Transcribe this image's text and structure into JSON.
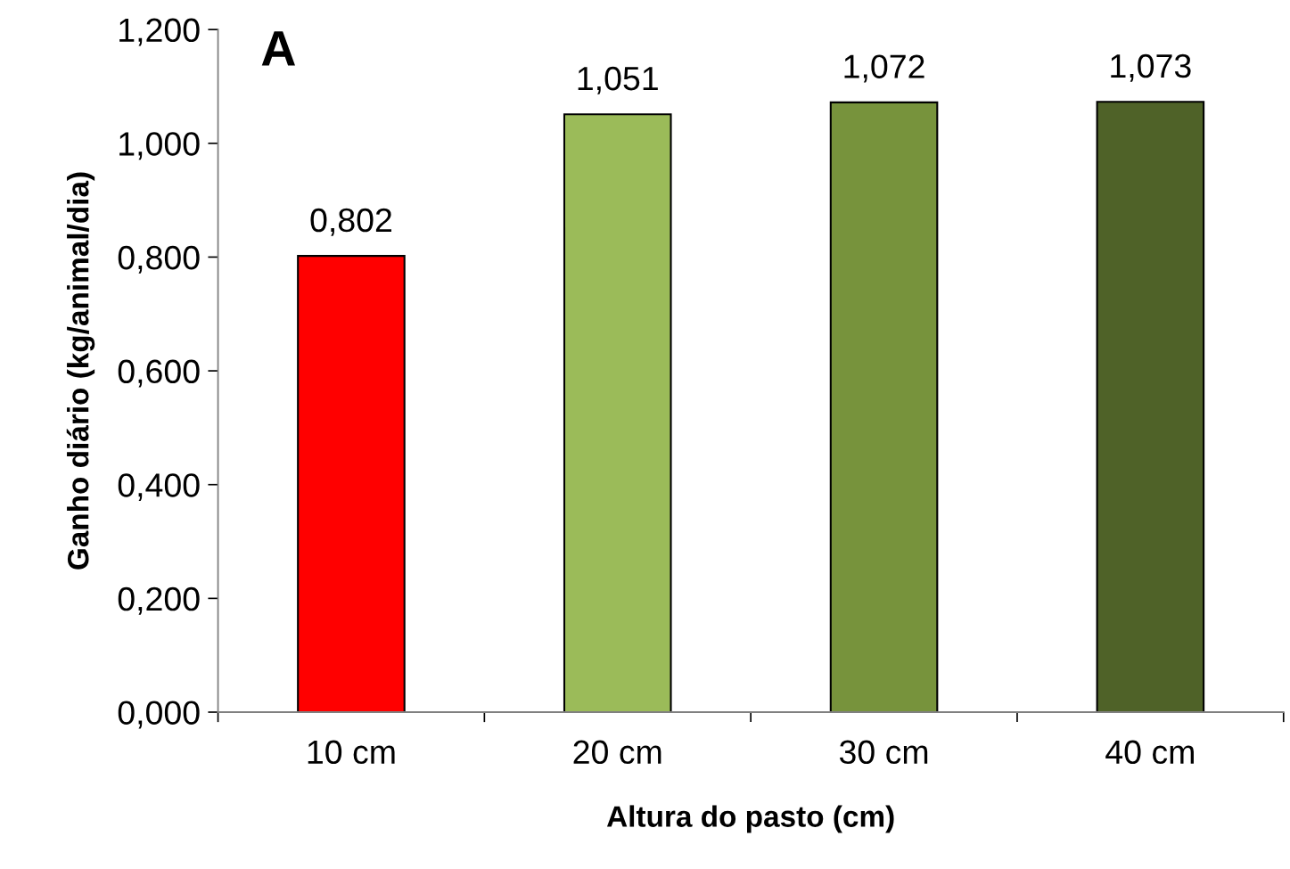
{
  "chart_data": {
    "type": "bar",
    "title": "A",
    "xlabel": "Altura do pasto (cm)",
    "ylabel": "Ganho diário (kg/animal/dia)",
    "categories": [
      "10 cm",
      "20 cm",
      "30 cm",
      "40 cm"
    ],
    "values": [
      0.802,
      1.051,
      1.072,
      1.073
    ],
    "colors": [
      "#ff0000",
      "#9bbb59",
      "#77933c",
      "#4f6228"
    ],
    "value_labels": [
      "0,802",
      "1,051",
      "1,072",
      "1,073"
    ],
    "ylim": [
      0,
      1.2
    ],
    "yticks": [
      {
        "value": 0,
        "label": "0,000"
      },
      {
        "value": 0.2,
        "label": "0,200"
      },
      {
        "value": 0.4,
        "label": "0,400"
      },
      {
        "value": 0.6,
        "label": "0,600"
      },
      {
        "value": 0.8,
        "label": "0,800"
      },
      {
        "value": 1.0,
        "label": "1,000"
      },
      {
        "value": 1.2,
        "label": "1,200"
      }
    ],
    "grid": false,
    "legend": false
  }
}
